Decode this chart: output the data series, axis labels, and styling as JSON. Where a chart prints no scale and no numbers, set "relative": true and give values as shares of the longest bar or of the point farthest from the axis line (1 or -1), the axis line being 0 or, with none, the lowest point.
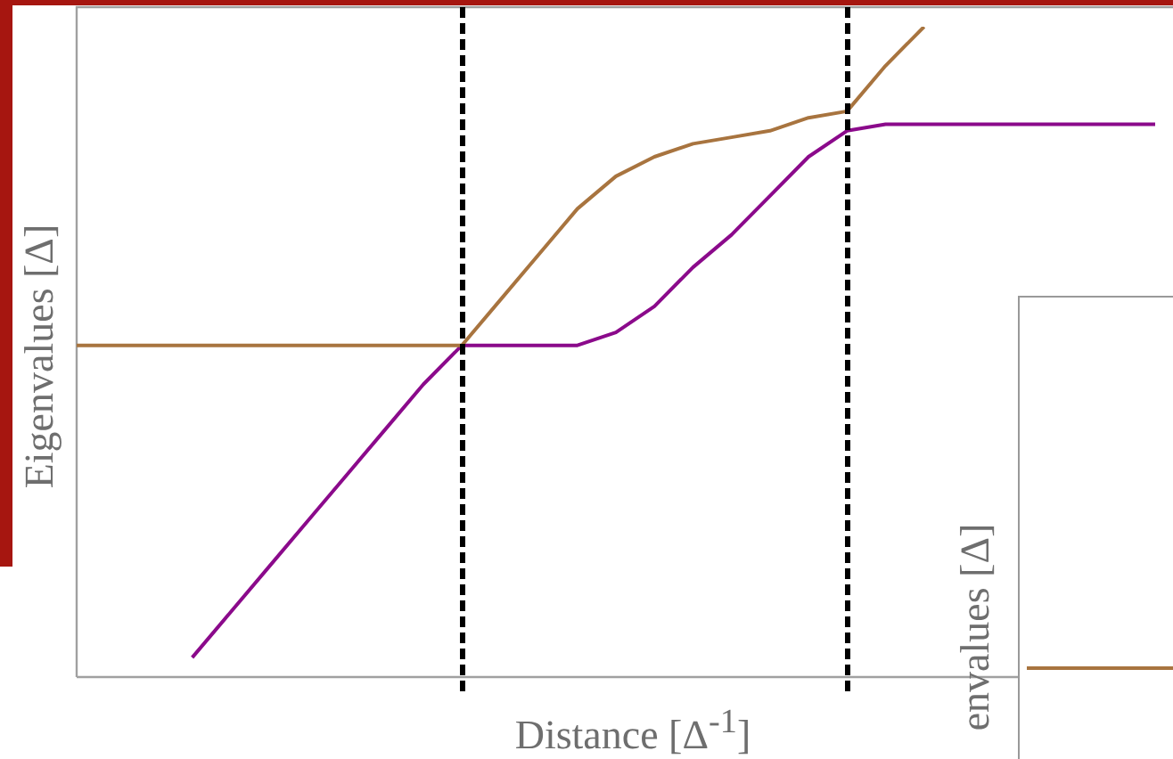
{
  "chart_data": [
    {
      "type": "line",
      "xlabel": "Distance [Δ$^{-1}$]",
      "ylabel": "Eigenvalues [Δ]",
      "relative": true,
      "grid": false,
      "legend": false,
      "marker": "none",
      "tick_labels": false,
      "categories": [
        null,
        null,
        null,
        null,
        null,
        null,
        null,
        null,
        null,
        null,
        null,
        null,
        null,
        null,
        null,
        null,
        null,
        null,
        null,
        null,
        null,
        null,
        null,
        null,
        null,
        null,
        null,
        null,
        null
      ],
      "series": [
        {
          "color": "#a8743f",
          "values": [
            0.51,
            0.51,
            0.51,
            0.51,
            0.51,
            0.51,
            0.51,
            0.51,
            0.51,
            0.51,
            0.51,
            0.58,
            0.65,
            0.72,
            0.77,
            0.8,
            0.82,
            0.83,
            0.84,
            0.86,
            0.87,
            0.94,
            1,
            null,
            null,
            null,
            null,
            null,
            null
          ]
        },
        {
          "color": "#8b0a8b",
          "values": [
            null,
            null,
            null,
            0.03,
            0.1,
            0.17,
            0.24,
            0.31,
            0.38,
            0.45,
            0.51,
            0.51,
            0.51,
            0.51,
            0.53,
            0.57,
            0.63,
            0.68,
            0.74,
            0.8,
            0.84,
            0.85,
            0.85,
            0.85,
            0.85,
            0.85,
            0.85,
            0.85,
            0.85
          ]
        }
      ]
    },
    {
      "type": "other",
      "ylabel": "envalues [Δ]"
    }
  ]
}
